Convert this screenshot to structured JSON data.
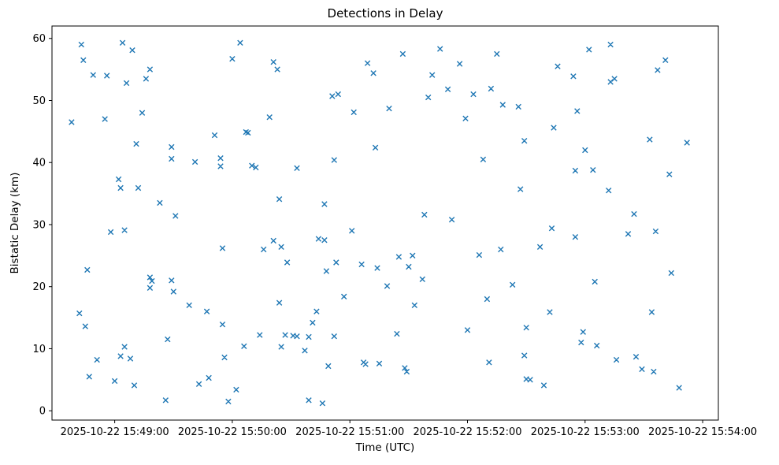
{
  "chart_data": {
    "type": "scatter",
    "title": "Detections in Delay",
    "xlabel": "Time (UTC)",
    "ylabel": "Bistatic Delay (km)",
    "marker": "x",
    "marker_color": "#1f77b4",
    "background": "#ffffff",
    "grid": false,
    "legend": "none",
    "x_unit": "seconds after 2025-10-22 15:48:00 UTC",
    "xlim_seconds": [
      28,
      368
    ],
    "ylim": [
      -1.5,
      62
    ],
    "y_ticks": [
      0,
      10,
      20,
      30,
      40,
      50,
      60
    ],
    "x_ticks": [
      {
        "seconds": 60,
        "label": "2025-10-22 15:49:00"
      },
      {
        "seconds": 120,
        "label": "2025-10-22 15:50:00"
      },
      {
        "seconds": 180,
        "label": "2025-10-22 15:51:00"
      },
      {
        "seconds": 240,
        "label": "2025-10-22 15:52:00"
      },
      {
        "seconds": 300,
        "label": "2025-10-22 15:53:00"
      },
      {
        "seconds": 360,
        "label": "2025-10-22 15:54:00"
      }
    ],
    "points": [
      [
        38,
        46.5
      ],
      [
        43,
        59
      ],
      [
        44,
        56.5
      ],
      [
        42,
        15.7
      ],
      [
        45,
        13.6
      ],
      [
        46,
        22.7
      ],
      [
        47,
        5.5
      ],
      [
        49,
        54.1
      ],
      [
        51,
        8.2
      ],
      [
        56,
        54
      ],
      [
        55,
        47
      ],
      [
        58,
        28.8
      ],
      [
        62,
        37.3
      ],
      [
        63,
        35.9
      ],
      [
        60,
        4.8
      ],
      [
        63,
        8.8
      ],
      [
        64,
        59.3
      ],
      [
        66,
        52.8
      ],
      [
        65,
        29.1
      ],
      [
        65,
        10.3
      ],
      [
        69,
        58.1
      ],
      [
        68,
        8.4
      ],
      [
        70,
        4.1
      ],
      [
        71,
        43
      ],
      [
        72,
        35.9
      ],
      [
        74,
        48
      ],
      [
        76,
        53.5
      ],
      [
        78,
        55
      ],
      [
        78,
        21.5
      ],
      [
        79,
        20.9
      ],
      [
        78,
        19.8
      ],
      [
        83,
        33.5
      ],
      [
        87,
        11.5
      ],
      [
        86,
        1.7
      ],
      [
        89,
        42.5
      ],
      [
        89,
        40.6
      ],
      [
        89,
        21
      ],
      [
        90,
        19.2
      ],
      [
        91,
        31.4
      ],
      [
        101,
        40.1
      ],
      [
        98,
        17
      ],
      [
        103,
        4.3
      ],
      [
        107,
        16
      ],
      [
        108,
        5.3
      ],
      [
        111,
        44.4
      ],
      [
        114,
        40.7
      ],
      [
        114,
        39.4
      ],
      [
        115,
        26.2
      ],
      [
        115,
        13.9
      ],
      [
        116,
        8.6
      ],
      [
        118,
        1.5
      ],
      [
        120,
        56.7
      ],
      [
        124,
        59.3
      ],
      [
        122,
        3.4
      ],
      [
        127,
        44.9
      ],
      [
        128,
        44.8
      ],
      [
        130,
        39.5
      ],
      [
        132,
        39.2
      ],
      [
        126,
        10.4
      ],
      [
        134,
        12.2
      ],
      [
        136,
        26
      ],
      [
        139,
        47.3
      ],
      [
        141,
        56.2
      ],
      [
        143,
        55
      ],
      [
        141,
        27.4
      ],
      [
        145,
        26.4
      ],
      [
        144,
        34.1
      ],
      [
        144,
        17.4
      ],
      [
        145,
        10.3
      ],
      [
        147,
        12.2
      ],
      [
        148,
        23.9
      ],
      [
        151,
        12.1
      ],
      [
        153,
        12
      ],
      [
        153,
        39.1
      ],
      [
        157,
        9.7
      ],
      [
        159,
        11.9
      ],
      [
        159,
        1.7
      ],
      [
        161,
        14.2
      ],
      [
        163,
        16
      ],
      [
        166,
        1.2
      ],
      [
        164,
        27.7
      ],
      [
        167,
        27.5
      ],
      [
        168,
        22.5
      ],
      [
        167,
        33.3
      ],
      [
        169,
        7.2
      ],
      [
        172,
        12
      ],
      [
        173,
        23.9
      ],
      [
        172,
        40.4
      ],
      [
        171,
        50.7
      ],
      [
        174,
        51
      ],
      [
        177,
        18.4
      ],
      [
        181,
        29
      ],
      [
        182,
        48.1
      ],
      [
        186,
        23.6
      ],
      [
        187,
        7.8
      ],
      [
        188,
        7.5
      ],
      [
        189,
        56
      ],
      [
        192,
        54.4
      ],
      [
        193,
        42.4
      ],
      [
        194,
        23
      ],
      [
        195,
        7.6
      ],
      [
        200,
        48.7
      ],
      [
        199,
        20.1
      ],
      [
        204,
        12.4
      ],
      [
        205,
        24.8
      ],
      [
        208,
        6.9
      ],
      [
        209,
        6.3
      ],
      [
        207,
        57.5
      ],
      [
        210,
        23.2
      ],
      [
        212,
        25
      ],
      [
        213,
        17
      ],
      [
        217,
        21.2
      ],
      [
        218,
        31.6
      ],
      [
        220,
        50.5
      ],
      [
        222,
        54.1
      ],
      [
        226,
        58.3
      ],
      [
        230,
        51.8
      ],
      [
        232,
        30.8
      ],
      [
        236,
        55.9
      ],
      [
        239,
        47.1
      ],
      [
        240,
        13
      ],
      [
        246,
        25.1
      ],
      [
        243,
        51
      ],
      [
        248,
        40.5
      ],
      [
        250,
        18
      ],
      [
        251,
        7.8
      ],
      [
        252,
        51.9
      ],
      [
        257,
        26
      ],
      [
        255,
        57.5
      ],
      [
        258,
        49.3
      ],
      [
        263,
        20.3
      ],
      [
        266,
        49
      ],
      [
        267,
        35.7
      ],
      [
        269,
        43.5
      ],
      [
        270,
        13.4
      ],
      [
        269,
        8.9
      ],
      [
        270,
        5.1
      ],
      [
        272,
        5
      ],
      [
        277,
        26.4
      ],
      [
        279,
        4.1
      ],
      [
        282,
        15.9
      ],
      [
        283,
        29.4
      ],
      [
        284,
        45.6
      ],
      [
        286,
        55.5
      ],
      [
        294,
        53.9
      ],
      [
        295,
        28
      ],
      [
        296,
        48.3
      ],
      [
        295,
        38.7
      ],
      [
        300,
        42
      ],
      [
        299,
        12.7
      ],
      [
        298,
        11
      ],
      [
        302,
        58.2
      ],
      [
        304,
        38.8
      ],
      [
        305,
        20.8
      ],
      [
        306,
        10.5
      ],
      [
        313,
        59
      ],
      [
        312,
        35.5
      ],
      [
        315,
        53.5
      ],
      [
        313,
        53
      ],
      [
        316,
        8.2
      ],
      [
        322,
        28.5
      ],
      [
        325,
        31.7
      ],
      [
        326,
        8.7
      ],
      [
        329,
        6.7
      ],
      [
        333,
        43.7
      ],
      [
        335,
        6.3
      ],
      [
        334,
        15.9
      ],
      [
        336,
        28.9
      ],
      [
        337,
        54.9
      ],
      [
        341,
        56.5
      ],
      [
        352,
        43.2
      ],
      [
        343,
        38.1
      ],
      [
        344,
        22.2
      ],
      [
        348,
        3.7
      ]
    ]
  }
}
